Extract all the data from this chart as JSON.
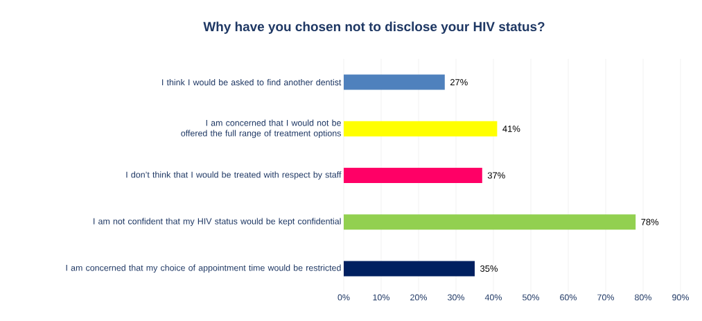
{
  "chart_data": {
    "type": "bar",
    "orientation": "horizontal",
    "title": "Why have you chosen not to disclose your HIV status?",
    "categories": [
      "I think I would be asked to find another dentist",
      "I am concerned that I would not be offered the full range of treatment options",
      "I don’t think that I would be treated with respect by staff",
      "I am not confident that my HIV status would be kept confidential",
      "I am concerned that my choice of appointment time would be restricted"
    ],
    "values": [
      27,
      41,
      37,
      78,
      35
    ],
    "value_labels": [
      "27%",
      "41%",
      "37%",
      "78%",
      "35%"
    ],
    "colors": [
      "#4f81bd",
      "#ffff00",
      "#ff0066",
      "#92d050",
      "#002060"
    ],
    "xlim": [
      0,
      90
    ],
    "xticks": [
      {
        "value": 0,
        "label": "0%"
      },
      {
        "value": 10,
        "label": "10%"
      },
      {
        "value": 20,
        "label": "20%"
      },
      {
        "value": 30,
        "label": "30%"
      },
      {
        "value": 40,
        "label": "40%"
      },
      {
        "value": 50,
        "label": "50%"
      },
      {
        "value": 60,
        "label": "60%"
      },
      {
        "value": 70,
        "label": "70%"
      },
      {
        "value": 80,
        "label": "80%"
      },
      {
        "value": 90,
        "label": "90%"
      }
    ],
    "grid": "x"
  }
}
